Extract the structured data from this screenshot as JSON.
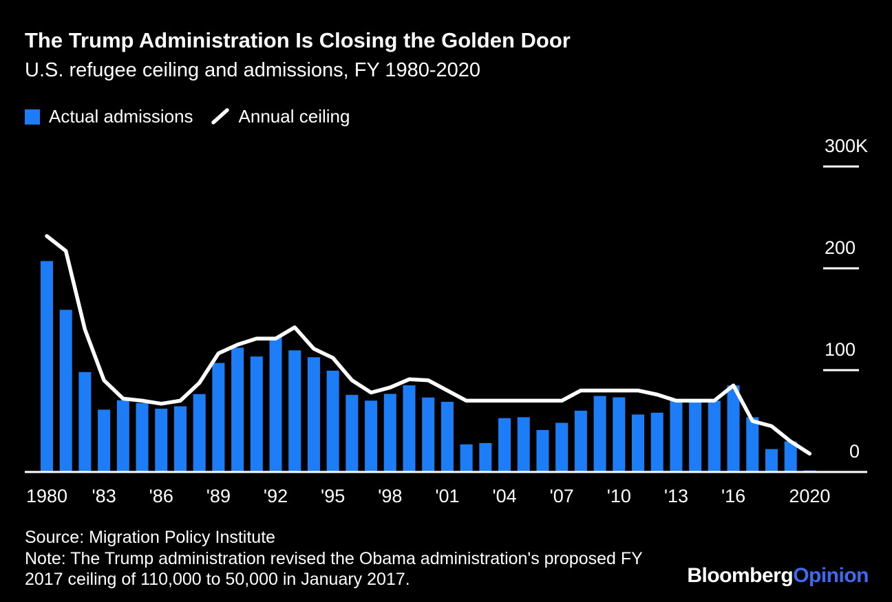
{
  "header": {
    "title": "The Trump Administration Is Closing the Golden Door",
    "subtitle": "U.S. refugee ceiling and admissions, FY 1980-2020"
  },
  "legend": {
    "admissions_label": "Actual admissions",
    "ceiling_label": "Annual ceiling",
    "admissions_color": "#1d7df6",
    "ceiling_color": "#ffffff"
  },
  "chart_data": {
    "type": "bar",
    "title": "The Trump Administration Is Closing the Golden Door",
    "subtitle": "U.S. refugee ceiling and admissions, FY 1980-2020",
    "x": [
      1980,
      1981,
      1982,
      1983,
      1984,
      1985,
      1986,
      1987,
      1988,
      1989,
      1990,
      1991,
      1992,
      1993,
      1994,
      1995,
      1996,
      1997,
      1998,
      1999,
      2000,
      2001,
      2002,
      2003,
      2004,
      2005,
      2006,
      2007,
      2008,
      2009,
      2010,
      2011,
      2012,
      2013,
      2014,
      2015,
      2016,
      2017,
      2018,
      2019,
      2020
    ],
    "series": [
      {
        "name": "Actual admissions",
        "type": "bar",
        "color": "#1d7df6",
        "values": [
          207116,
          159252,
          98096,
          61218,
          70393,
          67704,
          62146,
          64528,
          76483,
          107070,
          122066,
          113389,
          132531,
          119448,
          112682,
          99490,
          75693,
          70085,
          76712,
          85076,
          73147,
          68925,
          27131,
          28403,
          52873,
          53813,
          41223,
          48282,
          60191,
          74654,
          73311,
          56424,
          58238,
          69926,
          69987,
          69933,
          84994,
          53716,
          22491,
          30000,
          1500
        ]
      },
      {
        "name": "Annual ceiling",
        "type": "line",
        "color": "#ffffff",
        "values": [
          231700,
          217000,
          140000,
          90000,
          72000,
          70000,
          67000,
          70000,
          87500,
          116500,
          125000,
          131000,
          131000,
          142000,
          121000,
          112000,
          90000,
          78000,
          83000,
          91000,
          90000,
          80000,
          70000,
          70000,
          70000,
          70000,
          70000,
          70000,
          80000,
          80000,
          80000,
          80000,
          76000,
          70000,
          70000,
          70000,
          85000,
          50000,
          45000,
          30000,
          18000
        ]
      }
    ],
    "ylim": [
      0,
      300000
    ],
    "yticks": [
      {
        "label": "0",
        "value": 0
      },
      {
        "label": "100",
        "value": 100000
      },
      {
        "label": "200",
        "value": 200000
      },
      {
        "label": "300K",
        "value": 300000
      }
    ],
    "xticks": [
      {
        "label": "1980",
        "year": 1980
      },
      {
        "label": "'83",
        "year": 1983
      },
      {
        "label": "'86",
        "year": 1986
      },
      {
        "label": "'89",
        "year": 1989
      },
      {
        "label": "'92",
        "year": 1992
      },
      {
        "label": "'95",
        "year": 1995
      },
      {
        "label": "'98",
        "year": 1998
      },
      {
        "label": "'01",
        "year": 2001
      },
      {
        "label": "'04",
        "year": 2004
      },
      {
        "label": "'07",
        "year": 2007
      },
      {
        "label": "'10",
        "year": 2010
      },
      {
        "label": "'13",
        "year": 2013
      },
      {
        "label": "'16",
        "year": 2016
      },
      {
        "label": "2020",
        "year": 2020
      }
    ],
    "grid": "right-edge ticks only",
    "legend_position": "top-left"
  },
  "footer": {
    "source": "Source: Migration Policy Institute",
    "note_line1": "Note: The Trump administration revised the Obama administration's proposed FY",
    "note_line2": "2017 ceiling of 110,000 to 50,000 in January 2017.",
    "brand_bloomberg": "Bloomberg",
    "brand_opinion": "Opinion",
    "brand_opinion_color": "#3e6af3"
  }
}
